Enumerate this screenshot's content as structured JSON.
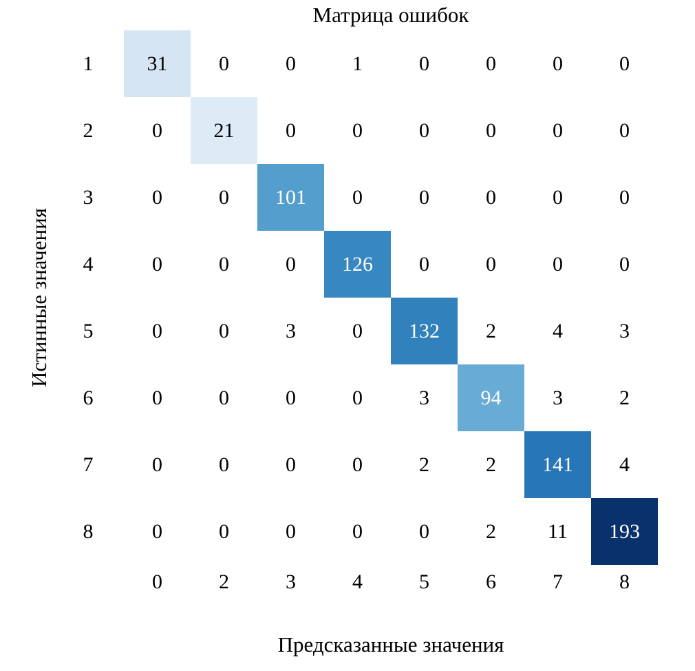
{
  "chart_data": {
    "type": "heatmap",
    "title": "Матрица ошибок",
    "xlabel": "Предсказанные значения",
    "ylabel": "Истинные значения",
    "row_labels": [
      "1",
      "2",
      "3",
      "4",
      "5",
      "6",
      "7",
      "8"
    ],
    "col_labels": [
      "0",
      "2",
      "3",
      "4",
      "5",
      "6",
      "7",
      "8"
    ],
    "matrix": [
      [
        31,
        0,
        0,
        1,
        0,
        0,
        0,
        0
      ],
      [
        0,
        21,
        0,
        0,
        0,
        0,
        0,
        0
      ],
      [
        0,
        0,
        101,
        0,
        0,
        0,
        0,
        0
      ],
      [
        0,
        0,
        0,
        126,
        0,
        0,
        0,
        0
      ],
      [
        0,
        0,
        3,
        0,
        132,
        2,
        4,
        3
      ],
      [
        0,
        0,
        0,
        0,
        3,
        94,
        3,
        2
      ],
      [
        0,
        0,
        0,
        0,
        2,
        2,
        141,
        4
      ],
      [
        0,
        0,
        0,
        0,
        0,
        2,
        11,
        193
      ]
    ],
    "value_range": [
      0,
      193
    ],
    "colormap": "Blues",
    "diagonal_colors": [
      "#d5e5f4",
      "#ddebf7",
      "#539ecd",
      "#3787c1",
      "#3181bd",
      "#68acd5",
      "#2676b8",
      "#09316b"
    ],
    "diagonal_text_colors": [
      "#000000",
      "#000000",
      "#ffffff",
      "#ffffff",
      "#ffffff",
      "#ffffff",
      "#ffffff",
      "#ffffff"
    ],
    "offdiag_bg": "#ffffff",
    "offdiag_text": "#000000",
    "grid": false,
    "legend": false
  }
}
